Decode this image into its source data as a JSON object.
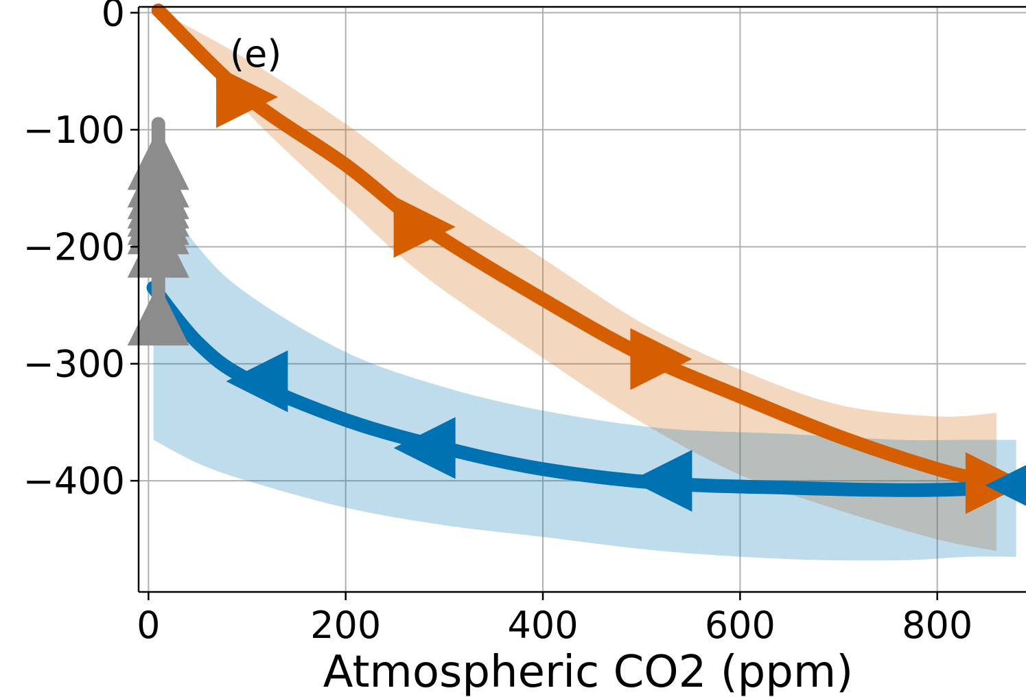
{
  "chart_data": {
    "type": "line",
    "panel_label": "(e)",
    "xlabel": "Atmospheric CO2 (ppm)",
    "ylabel": "",
    "xlim": [
      -10,
      890
    ],
    "ylim": [
      -495,
      5
    ],
    "xticks": [
      0,
      200,
      400,
      600,
      800
    ],
    "xtick_labels": [
      "0",
      "200",
      "400",
      "600",
      "800"
    ],
    "yticks": [
      0,
      -100,
      -200,
      -300,
      -400
    ],
    "ytick_labels": [
      "0",
      "−100",
      "−200",
      "−300",
      "−400"
    ],
    "grid": true,
    "series": [
      {
        "color": "#d55e00",
        "marker": "triangle-right",
        "x": [
          10,
          100,
          200,
          280,
          400,
          500,
          600,
          700,
          800,
          860
        ],
        "y": [
          2,
          -72,
          -130,
          -183,
          -245,
          -292,
          -328,
          -362,
          -390,
          -402
        ],
        "band_upper": [
          2,
          -40,
          -95,
          -145,
          -210,
          -265,
          -305,
          -335,
          -345,
          -342
        ],
        "band_lower": [
          2,
          -85,
          -165,
          -225,
          -295,
          -350,
          -395,
          -425,
          -450,
          -460
        ],
        "marker_x": [
          100,
          280,
          520,
          860
        ],
        "marker_y": [
          -72,
          -183,
          -296,
          -402
        ]
      },
      {
        "color": "#0072b2",
        "marker": "triangle-left",
        "x": [
          5,
          50,
          100,
          200,
          300,
          400,
          520,
          650,
          760,
          830,
          880
        ],
        "y": [
          -235,
          -282,
          -313,
          -348,
          -372,
          -390,
          -402,
          -406,
          -408,
          -407,
          -404
        ],
        "band_upper": [
          -145,
          -200,
          -240,
          -290,
          -320,
          -340,
          -355,
          -360,
          -365,
          -365,
          -365
        ],
        "band_lower": [
          -365,
          -385,
          -400,
          -423,
          -438,
          -448,
          -460,
          -467,
          -468,
          -465,
          -465
        ],
        "marker_x": [
          110,
          280,
          520,
          880
        ],
        "marker_y": [
          -315,
          -372,
          -400,
          -404
        ]
      },
      {
        "color": "#8c8c8c",
        "marker": "triangle-up",
        "x": [
          10,
          10
        ],
        "y": [
          -95,
          -270
        ],
        "marker_x": [
          10,
          10,
          10,
          10,
          10,
          10,
          10,
          10,
          10
        ],
        "marker_y": [
          -125,
          -140,
          -150,
          -158,
          -165,
          -172,
          -180,
          -200,
          -258
        ]
      }
    ],
    "overlap_color": "#b5bab9"
  }
}
